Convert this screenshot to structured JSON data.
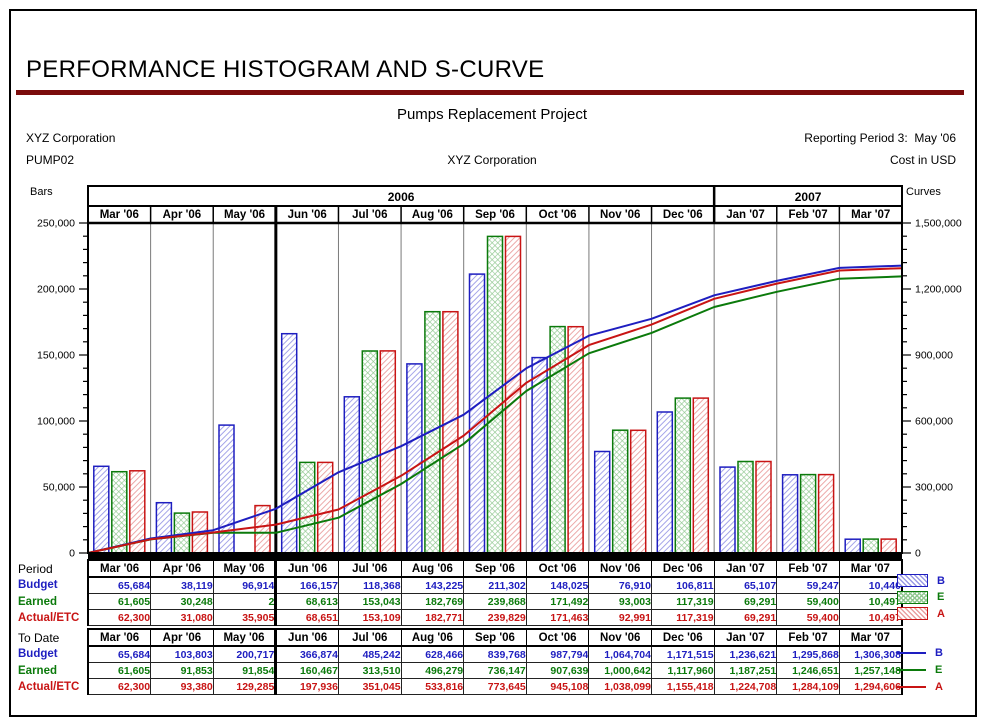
{
  "header": {
    "title": "PERFORMANCE HISTOGRAM AND S-CURVE",
    "project_title": "Pumps Replacement Project",
    "company": "XYZ Corporation",
    "project_id": "PUMP02",
    "center_company": "XYZ Corporation",
    "reporting_period": "Reporting Period 3:  May '06",
    "currency_note": "Cost in USD",
    "accent_color": "#7b0c0c"
  },
  "chart_data": {
    "type": "bar+line",
    "title": "Performance Histogram and S-Curve",
    "categories": [
      "Mar '06",
      "Apr '06",
      "May '06",
      "Jun '06",
      "Jul '06",
      "Aug '06",
      "Sep '06",
      "Oct '06",
      "Nov '06",
      "Dec '06",
      "Jan '07",
      "Feb '07",
      "Mar '07"
    ],
    "year_groups": [
      {
        "label": "2006",
        "months": 10
      },
      {
        "label": "2007",
        "months": 3
      }
    ],
    "data_date_after_index": 2,
    "left_axis": {
      "label": "Bars",
      "min": 0,
      "max": 250000,
      "major_step": 50000,
      "minor_step": 10000
    },
    "right_axis": {
      "label": "Curves",
      "min": 0,
      "max": 1500000,
      "major_step": 300000,
      "minor_step": 60000
    },
    "grid": "column-separators-only",
    "legend_position": "right-of-table",
    "bar_series": [
      {
        "key": "B",
        "name": "Budget",
        "color": "#1e1ec0",
        "hatch": "#9a9ae6",
        "values": [
          65684,
          38119,
          96914,
          166157,
          118368,
          143225,
          211302,
          148025,
          76910,
          106811,
          65107,
          59247,
          10440
        ]
      },
      {
        "key": "E",
        "name": "Earned",
        "color": "#0b7a0b",
        "hatch": "#90c890",
        "values": [
          61605,
          30248,
          2,
          68613,
          153043,
          182769,
          239868,
          171492,
          93003,
          117319,
          69291,
          59400,
          10497
        ]
      },
      {
        "key": "A",
        "name": "Actual/ETC",
        "color": "#c81414",
        "hatch": "#eaa0a0",
        "values": [
          62300,
          31080,
          35905,
          68651,
          153109,
          182771,
          239829,
          171463,
          92991,
          117319,
          69291,
          59400,
          10497
        ]
      }
    ],
    "line_series": [
      {
        "key": "B",
        "name": "Budget",
        "color": "#1e1ec0",
        "values": [
          65684,
          103803,
          200717,
          366874,
          485242,
          628466,
          839768,
          987794,
          1064704,
          1171515,
          1236621,
          1295868,
          1306308
        ]
      },
      {
        "key": "E",
        "name": "Earned",
        "color": "#0b7a0b",
        "values": [
          61605,
          91853,
          91854,
          160467,
          313510,
          496279,
          736147,
          907639,
          1000642,
          1117960,
          1187251,
          1246651,
          1257148
        ]
      },
      {
        "key": "A",
        "name": "Actual/ETC",
        "color": "#c81414",
        "values": [
          62300,
          93380,
          129285,
          197936,
          351045,
          533816,
          773645,
          945108,
          1038099,
          1155418,
          1224708,
          1284109,
          1294606
        ]
      }
    ]
  },
  "table": {
    "sections": [
      {
        "label": "Period",
        "source": "bar_series"
      },
      {
        "label": "To Date",
        "source": "line_series"
      }
    ],
    "row_labels": [
      "Budget",
      "Earned",
      "Actual/ETC"
    ]
  }
}
